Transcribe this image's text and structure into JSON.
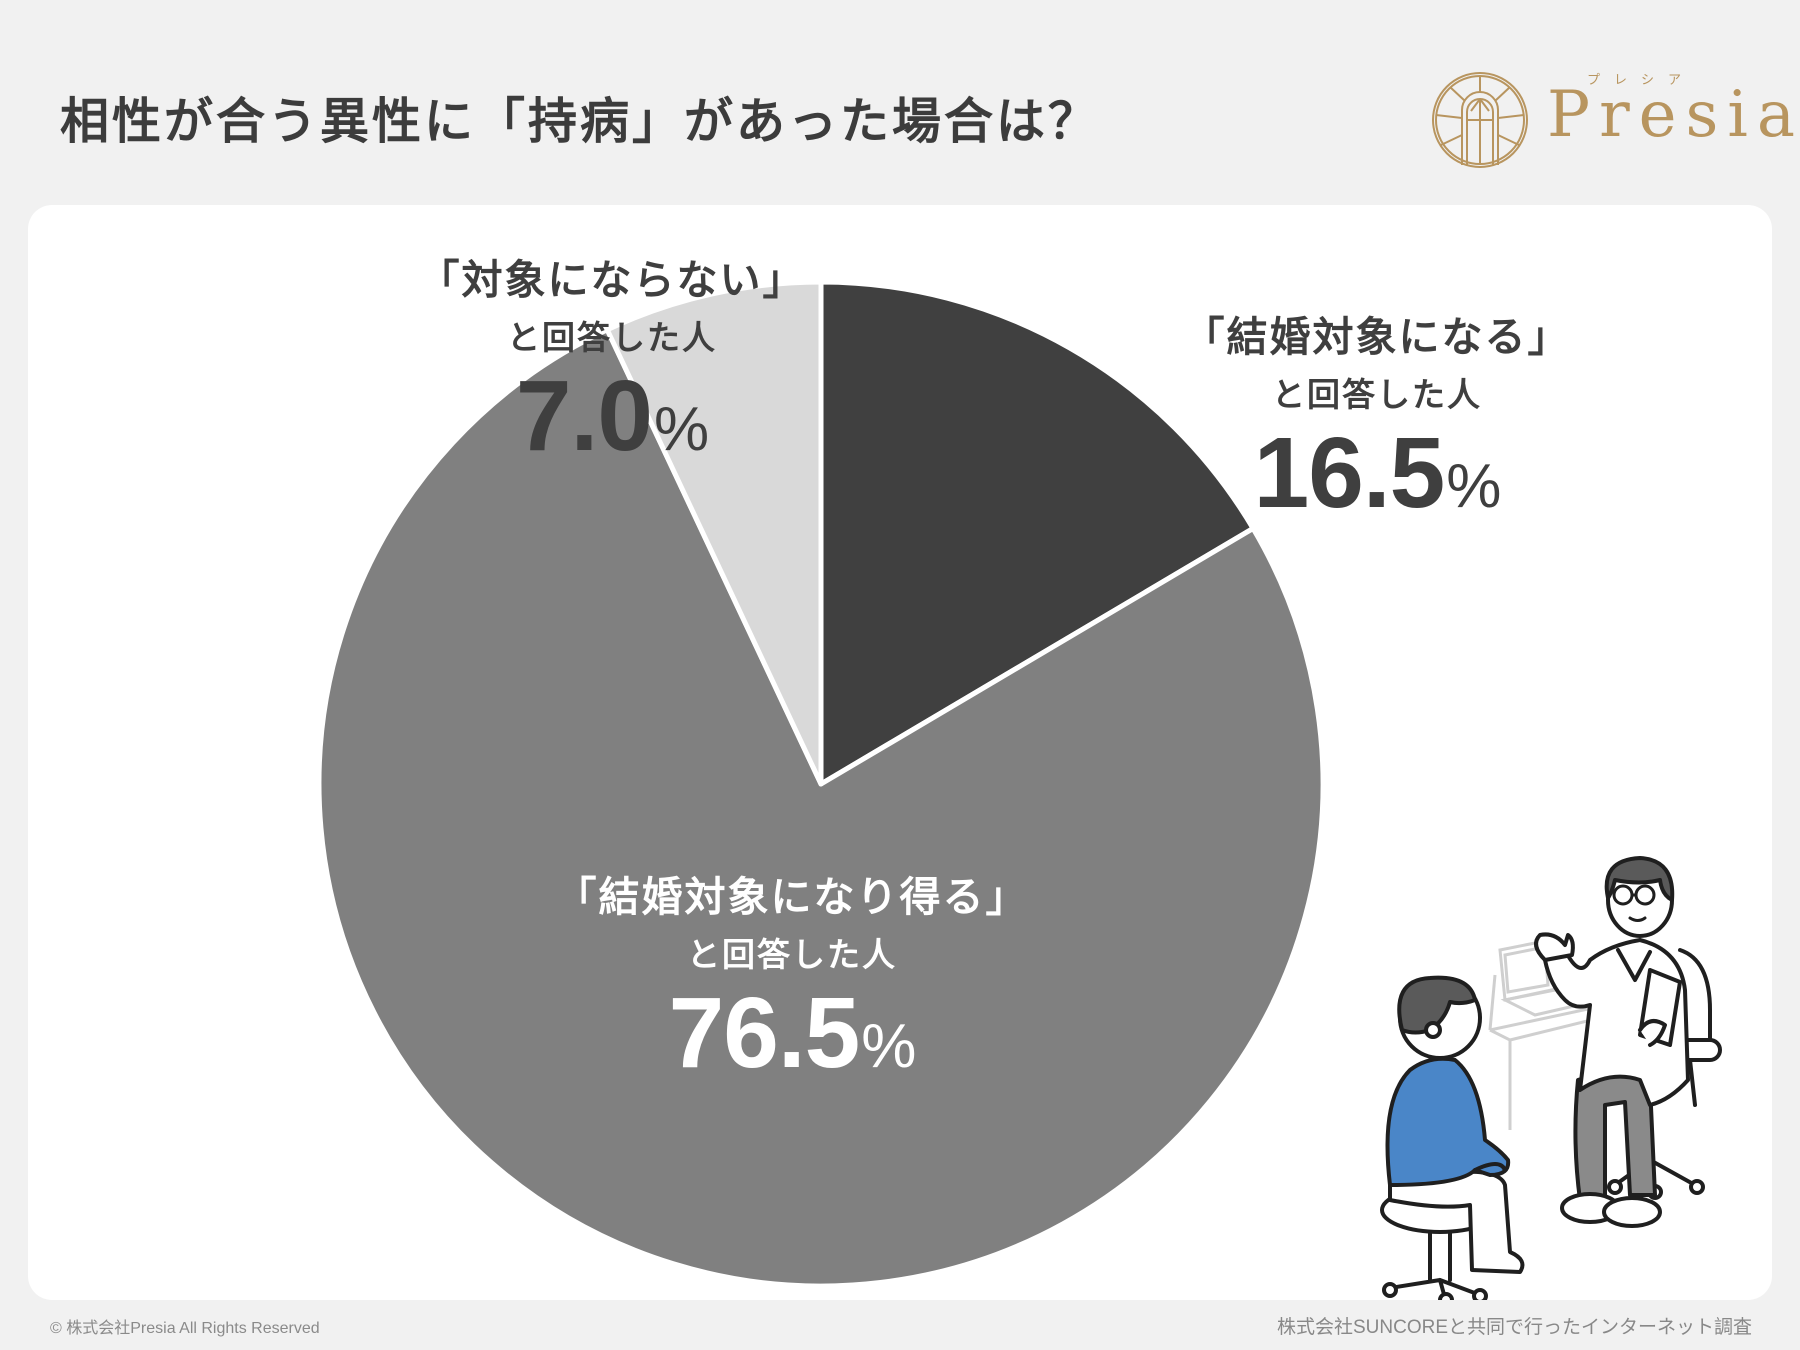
{
  "header": {
    "title": "相性が合う異性に「持病」があった場合は？",
    "logo": {
      "name": "Presia",
      "kana": "プレシア",
      "color": "#b8955f"
    }
  },
  "chart_data": {
    "type": "pie",
    "title": "相性が合う異性に「持病」があった場合は？",
    "start_angle_deg": 0,
    "direction": "clockwise",
    "slices": [
      {
        "label": "「結婚対象になる」と回答した人",
        "value": 16.5,
        "color": "#404040"
      },
      {
        "label": "「結婚対象になり得る」と回答した人",
        "value": 76.5,
        "color": "#808080"
      },
      {
        "label": "「対象にならない」と回答した人",
        "value": 7.0,
        "color": "#d9d9d9"
      }
    ],
    "unit": "%"
  },
  "labels": {
    "yes": {
      "line1": "「結婚対象になる」",
      "line2": "と回答した人",
      "value": "16.5",
      "unit": "%"
    },
    "maybe": {
      "line1": "「結婚対象になり得る」",
      "line2": "と回答した人",
      "value": "76.5",
      "unit": "%"
    },
    "no": {
      "line1": "「対象にならない」",
      "line2": "と回答した人",
      "value": "7.0",
      "unit": "%"
    }
  },
  "illustration": {
    "description": "doctor-consultation",
    "shirt_color": "#4a86c8",
    "pants_color": "#8a8a8a",
    "hair_color": "#5a5a5a"
  },
  "footer": {
    "copyright": "© 株式会社Presia All Rights Reserved",
    "source": "株式会社SUNCOREと共同で行ったインターネット調査"
  }
}
